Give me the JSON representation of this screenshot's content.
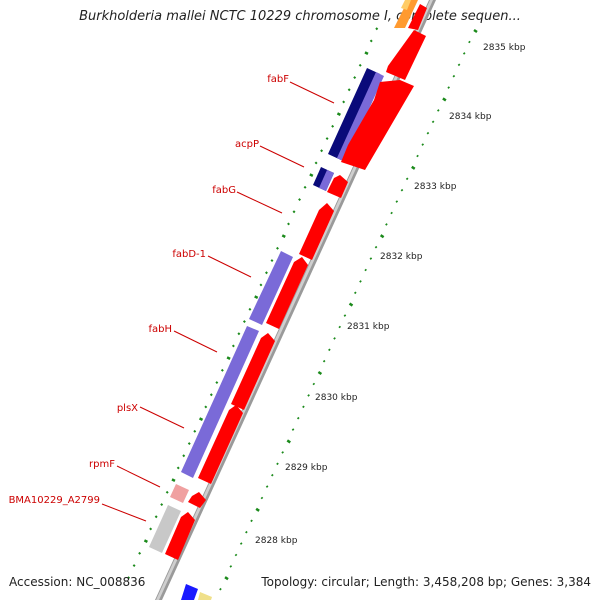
{
  "title": "Burkholderia mallei NCTC 10229 chromosome I, complete sequen...",
  "footer": {
    "accession": "Accession: NC_008836",
    "summary": "Topology: circular; Length: 3,458,208 bp; Genes: 3,384"
  },
  "colors": {
    "forward_gene": "#ff0000",
    "reverse_gene": "#7a6ad8",
    "reverse_gene_dark": "#0a0a7a",
    "hypothetical": "#c8c8c8",
    "tick": "#1b8a1b",
    "label": "#cc0000"
  },
  "ruler_labels": [
    "2835 kbp",
    "2834 kbp",
    "2833 kbp",
    "2832 kbp",
    "2831 kbp",
    "2830 kbp",
    "2829 kbp",
    "2828 kbp"
  ],
  "gene_labels": [
    {
      "name": "fabF",
      "gene_ref": "fabF"
    },
    {
      "name": "acpP",
      "gene_ref": "acpP"
    },
    {
      "name": "fabG",
      "gene_ref": "fabG"
    },
    {
      "name": "fabD-1",
      "gene_ref": "fabD-1"
    },
    {
      "name": "fabH",
      "gene_ref": "fabH"
    },
    {
      "name": "plsX",
      "gene_ref": "plsX"
    },
    {
      "name": "rpmF",
      "gene_ref": "rpmF"
    },
    {
      "name": "BMA10229_A2799",
      "gene_ref": "BMA10229_A2799"
    }
  ]
}
